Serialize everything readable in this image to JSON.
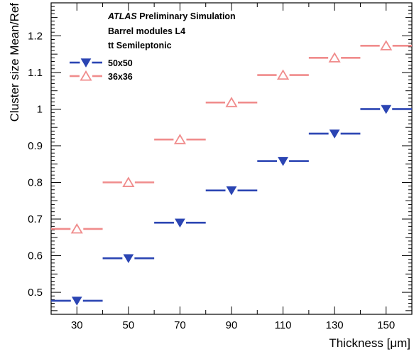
{
  "chart_data": {
    "type": "scatter",
    "title": "",
    "xlabel": "Thickness [μm]",
    "ylabel": "Cluster size Mean/Ref",
    "x_ticks": [
      "30",
      "50",
      "70",
      "90",
      "110",
      "130",
      "150"
    ],
    "y_ticks": [
      "0.5",
      "0.6",
      "0.7",
      "0.8",
      "0.9",
      "1",
      "1.1",
      "1.2"
    ],
    "xlim": [
      20,
      160
    ],
    "ylim": [
      0.44,
      1.29
    ],
    "grid": false,
    "legend_position": "top-left",
    "annotations": {
      "experiment": "ATLAS",
      "status": "Preliminary Simulation",
      "line2": "Barrel modules L4",
      "line3": "tt Semileptonic"
    },
    "series": [
      {
        "name": "50x50",
        "marker": "filled-triangle-down",
        "color": "#2b45b3",
        "bin_half_width": 10,
        "x": [
          30,
          50,
          70,
          90,
          110,
          130,
          150
        ],
        "y": [
          0.477,
          0.593,
          0.69,
          0.778,
          0.858,
          0.933,
          1.0
        ]
      },
      {
        "name": "36x36",
        "marker": "open-triangle-up",
        "color": "#f08c8c",
        "bin_half_width": 10,
        "x": [
          30,
          50,
          70,
          90,
          110,
          130,
          150
        ],
        "y": [
          0.673,
          0.8,
          0.917,
          1.018,
          1.093,
          1.14,
          1.173
        ]
      }
    ]
  }
}
